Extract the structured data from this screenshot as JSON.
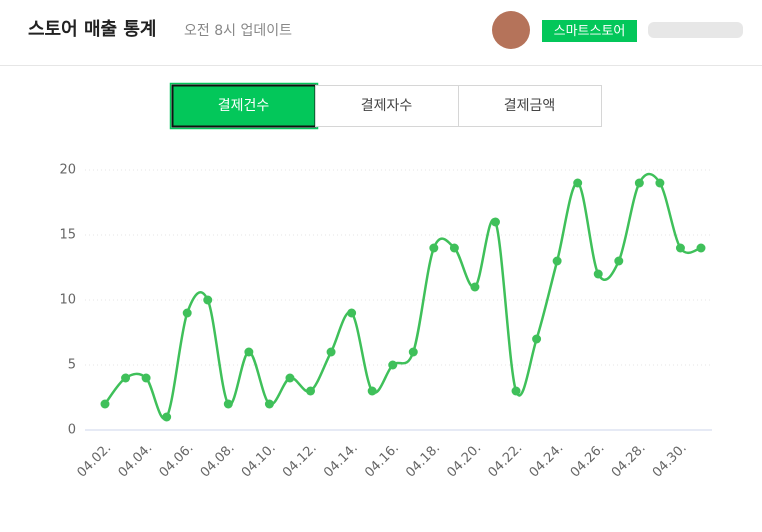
{
  "header": {
    "title": "스토어 매출 통계",
    "subtitle": "오전 8시 업데이트",
    "badge": "스마트스토어"
  },
  "tabs": [
    "결제건수",
    "결제자수",
    "결제금액"
  ],
  "active_tab": 0,
  "chart_data": {
    "type": "line",
    "categories": [
      "04.02.",
      null,
      "04.04.",
      null,
      "04.06.",
      null,
      "04.08.",
      null,
      "04.10.",
      null,
      "04.12.",
      null,
      "04.14.",
      null,
      "04.16.",
      null,
      "04.18.",
      null,
      "04.20.",
      null,
      "04.22.",
      null,
      "04.24.",
      null,
      "04.26.",
      null,
      "04.28.",
      null,
      "04.30.",
      null
    ],
    "series": [
      {
        "name": "결제건수",
        "color": "#3fc05a",
        "values": [
          2,
          4,
          4,
          1,
          9,
          10,
          2,
          6,
          2,
          4,
          3,
          6,
          9,
          3,
          5,
          6,
          14,
          14,
          11,
          16,
          3,
          7,
          13,
          19,
          12,
          13,
          19,
          19,
          14,
          14
        ]
      }
    ],
    "ylim": [
      0,
      20
    ],
    "yticks": [
      0,
      5,
      10,
      15,
      20
    ],
    "grid": true,
    "smooth": true
  }
}
